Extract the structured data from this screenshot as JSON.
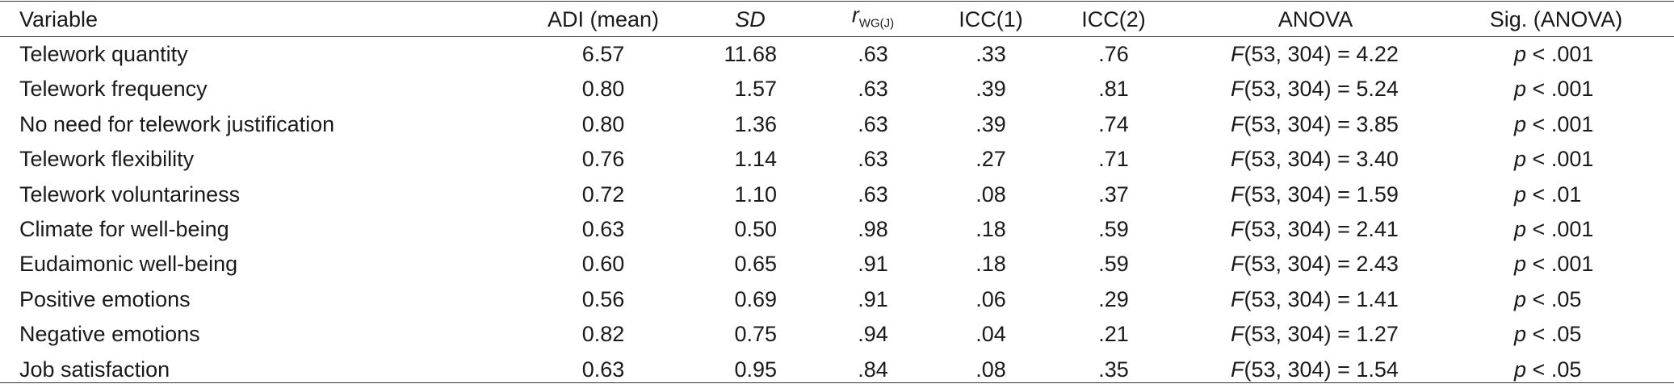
{
  "table": {
    "header": {
      "variable": "Variable",
      "adi": "ADI (mean)",
      "sd": "SD",
      "rwg": {
        "symbol": "r",
        "subscript": "WG(J)"
      },
      "icc1": "ICC(1)",
      "icc2": "ICC(2)",
      "anova": "ANOVA",
      "sig": "Sig. (ANOVA)"
    },
    "rows": [
      {
        "variable": "Telework quantity",
        "adi": "6.57",
        "sd": "11.68",
        "rwg": ".63",
        "icc1": ".33",
        "icc2": ".76",
        "anova": {
          "symbol": "F",
          "text": "(53, 304) = 4.22"
        },
        "sig": {
          "symbol": "p",
          "text": "< .001"
        }
      },
      {
        "variable": "Telework frequency",
        "adi": "0.80",
        "sd": "1.57",
        "rwg": ".63",
        "icc1": ".39",
        "icc2": ".81",
        "anova": {
          "symbol": "F",
          "text": "(53, 304) = 5.24"
        },
        "sig": {
          "symbol": "p",
          "text": "< .001"
        }
      },
      {
        "variable": "No need for telework justification",
        "adi": "0.80",
        "sd": "1.36",
        "rwg": ".63",
        "icc1": ".39",
        "icc2": ".74",
        "anova": {
          "symbol": "F",
          "text": "(53, 304) = 3.85"
        },
        "sig": {
          "symbol": "p",
          "text": "< .001"
        }
      },
      {
        "variable": "Telework flexibility",
        "adi": "0.76",
        "sd": "1.14",
        "rwg": ".63",
        "icc1": ".27",
        "icc2": ".71",
        "anova": {
          "symbol": "F",
          "text": "(53, 304) = 3.40"
        },
        "sig": {
          "symbol": "p",
          "text": "< .001"
        }
      },
      {
        "variable": "Telework voluntariness",
        "adi": "0.72",
        "sd": "1.10",
        "rwg": ".63",
        "icc1": ".08",
        "icc2": ".37",
        "anova": {
          "symbol": "F",
          "text": "(53, 304) = 1.59"
        },
        "sig": {
          "symbol": "p",
          "text": "< .01"
        }
      },
      {
        "variable": "Climate for well-being",
        "adi": "0.63",
        "sd": "0.50",
        "rwg": ".98",
        "icc1": ".18",
        "icc2": ".59",
        "anova": {
          "symbol": "F",
          "text": "(53, 304) = 2.41"
        },
        "sig": {
          "symbol": "p",
          "text": "< .001"
        }
      },
      {
        "variable": "Eudaimonic well-being",
        "adi": "0.60",
        "sd": "0.65",
        "rwg": ".91",
        "icc1": ".18",
        "icc2": ".59",
        "anova": {
          "symbol": "F",
          "text": "(53, 304) = 2.43"
        },
        "sig": {
          "symbol": "p",
          "text": "< .001"
        }
      },
      {
        "variable": "Positive emotions",
        "adi": "0.56",
        "sd": "0.69",
        "rwg": ".91",
        "icc1": ".06",
        "icc2": ".29",
        "anova": {
          "symbol": "F",
          "text": "(53, 304) = 1.41"
        },
        "sig": {
          "symbol": "p",
          "text": "< .05"
        }
      },
      {
        "variable": "Negative emotions",
        "adi": "0.82",
        "sd": "0.75",
        "rwg": ".94",
        "icc1": ".04",
        "icc2": ".21",
        "anova": {
          "symbol": "F",
          "text": "(53, 304) = 1.27"
        },
        "sig": {
          "symbol": "p",
          "text": "< .05"
        }
      },
      {
        "variable": "Job satisfaction",
        "adi": "0.63",
        "sd": "0.95",
        "rwg": ".84",
        "icc1": ".08",
        "icc2": ".35",
        "anova": {
          "symbol": "F",
          "text": "(53, 304) = 1.54"
        },
        "sig": {
          "symbol": "p",
          "text": "< .05"
        }
      }
    ]
  }
}
